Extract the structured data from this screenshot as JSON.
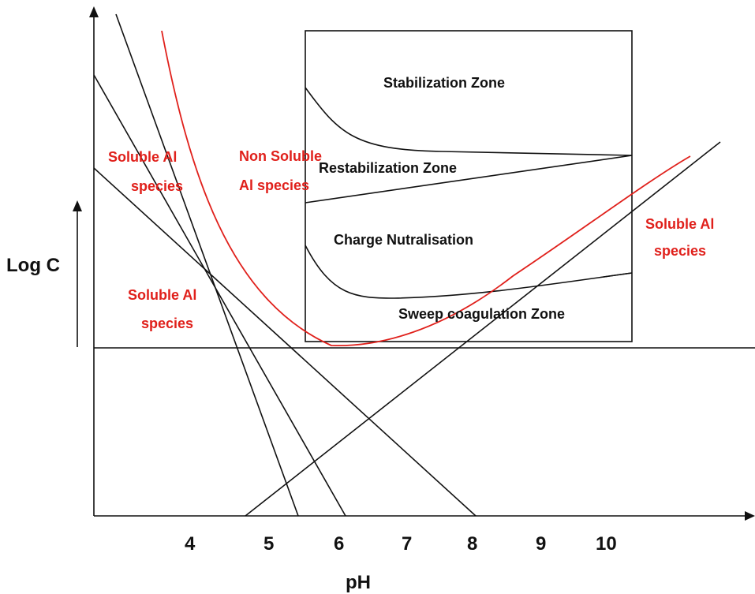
{
  "diagram": {
    "axes": {
      "ylabel": "Log C",
      "xlabel": "pH",
      "xticks": [
        "4",
        "5",
        "6",
        "7",
        "8",
        "9",
        "10"
      ]
    },
    "zones": {
      "stabilization": "Stabilization Zone",
      "restabilization": "Restabilization Zone",
      "charge": "Charge Nutralisation",
      "sweep": "Sweep coagulation Zone"
    },
    "species": {
      "soluble_upper_left": [
        "Soluble Al",
        "species"
      ],
      "non_soluble": [
        "Non Soluble",
        "Al species"
      ],
      "soluble_lower_left": [
        "Soluble Al",
        "species"
      ],
      "soluble_right": [
        "Soluble Al",
        "species"
      ]
    },
    "colors": {
      "lines": "#111111",
      "solubility_curve": "#e0201b",
      "species_text": "#e0201b"
    }
  }
}
